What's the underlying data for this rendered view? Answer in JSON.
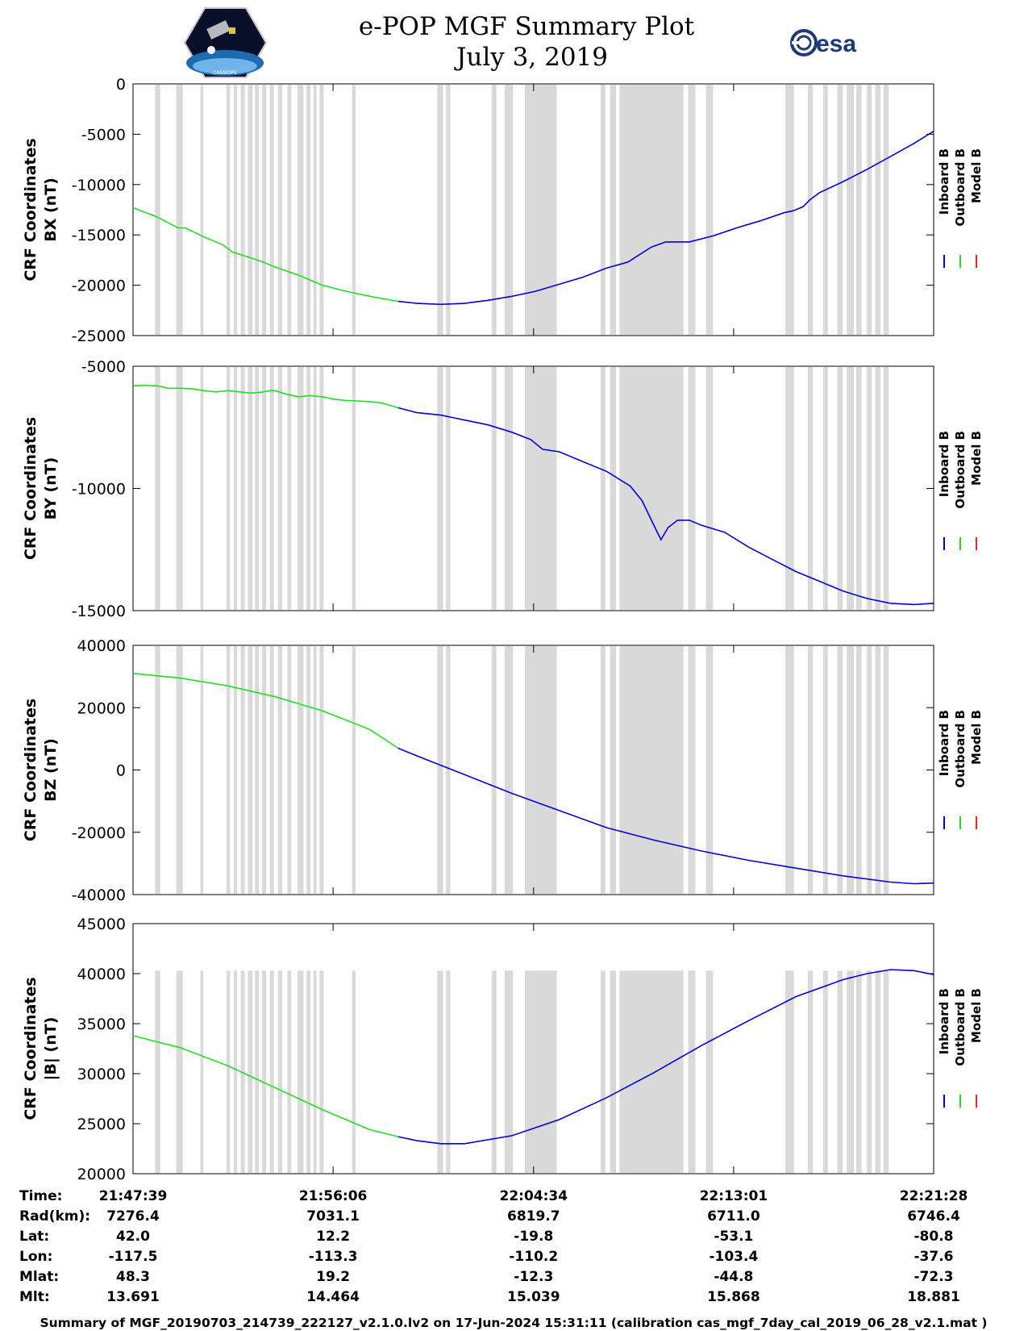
{
  "title_line1": "e-POP MGF Summary Plot",
  "title_line2": "July 3, 2019",
  "esa_logo_text": "esa",
  "cassiope_logo_text": "CASSIOPE",
  "footer": "Summary of MGF_20190703_214739_222127_v2.1.0.lv2 on 17-Jun-2024 15:31:11 (calibration cas_mgf_7day_cal_2019_06_28_v2.1.mat )",
  "colors": {
    "inboard": "#0000dd",
    "outboard": "#22dd22",
    "model": "#ee2222",
    "gap": "#d9d9d9"
  },
  "legend": {
    "inboard": "Inboard B",
    "outboard": "Outboard B",
    "model": "Model B"
  },
  "info_table": {
    "row_labels": [
      "Time:",
      "Rad(km):",
      "Lat:",
      "Lon:",
      "Mlat:",
      "Mlt:"
    ],
    "columns": [
      [
        "21:47:39",
        "7276.4",
        "42.0",
        "-117.5",
        "48.3",
        "13.691"
      ],
      [
        "21:56:06",
        "7031.1",
        "12.2",
        "-113.3",
        "19.2",
        "14.464"
      ],
      [
        "22:04:34",
        "6819.7",
        "-19.8",
        "-110.2",
        "-12.3",
        "15.039"
      ],
      [
        "22:13:01",
        "6711.0",
        "-53.1",
        "-103.4",
        "-44.8",
        "15.868"
      ],
      [
        "22:21:28",
        "6746.4",
        "-80.8",
        "-37.6",
        "-72.3",
        "18.881"
      ]
    ]
  },
  "chart_data": {
    "type": "line",
    "x_unit": "minutes since 21:47:39",
    "xlim": [
      0,
      33.82
    ],
    "xtick_values": [
      0,
      8.45,
      16.92,
      25.37,
      33.82
    ],
    "x_switch_outboard_to_inboard": 11.2,
    "data_gaps": [
      [
        0.93,
        1.15
      ],
      [
        1.83,
        2.1
      ],
      [
        2.85,
        2.97
      ],
      [
        3.95,
        4.1
      ],
      [
        4.25,
        4.4
      ],
      [
        4.55,
        4.72
      ],
      [
        4.85,
        5.05
      ],
      [
        5.15,
        5.32
      ],
      [
        5.45,
        5.62
      ],
      [
        5.78,
        5.95
      ],
      [
        6.12,
        6.3
      ],
      [
        6.52,
        6.68
      ],
      [
        6.95,
        7.2
      ],
      [
        7.33,
        7.5
      ],
      [
        7.62,
        7.75
      ],
      [
        7.88,
        8.05
      ],
      [
        9.25,
        9.4
      ],
      [
        12.85,
        13.1
      ],
      [
        13.22,
        13.4
      ],
      [
        15.15,
        15.35
      ],
      [
        15.7,
        16.05
      ],
      [
        16.55,
        17.9
      ],
      [
        19.75,
        19.95
      ],
      [
        20.15,
        20.4
      ],
      [
        20.55,
        23.25
      ],
      [
        23.45,
        23.75
      ],
      [
        24.2,
        24.5
      ],
      [
        27.55,
        27.92
      ],
      [
        28.5,
        28.72
      ],
      [
        29.15,
        29.35
      ],
      [
        29.75,
        29.97
      ],
      [
        30.15,
        30.45
      ],
      [
        30.55,
        30.78
      ],
      [
        31.0,
        31.2
      ],
      [
        31.35,
        31.58
      ],
      [
        31.7,
        31.92
      ]
    ],
    "panels": [
      {
        "ylabel_line1": "CRF Coordinates",
        "ylabel_line2": "BX (nT)",
        "ylim": [
          -25000,
          0
        ],
        "yticks": [
          0,
          -5000,
          -10000,
          -15000,
          -20000,
          -25000
        ],
        "ytick_labels": [
          "0",
          "-5000",
          "-10000",
          "-15000",
          "-20000",
          "-25000"
        ],
        "points": [
          [
            0,
            -12300
          ],
          [
            1,
            -13200
          ],
          [
            1.9,
            -14300
          ],
          [
            2.2,
            -14300
          ],
          [
            3,
            -15200
          ],
          [
            3.8,
            -16000
          ],
          [
            4.2,
            -16700
          ],
          [
            5,
            -17300
          ],
          [
            5.5,
            -17700
          ],
          [
            6,
            -18200
          ],
          [
            6.5,
            -18600
          ],
          [
            7,
            -19000
          ],
          [
            7.5,
            -19500
          ],
          [
            8,
            -20000
          ],
          [
            9,
            -20600
          ],
          [
            10,
            -21100
          ],
          [
            11.2,
            -21600
          ],
          [
            12,
            -21800
          ],
          [
            13,
            -21900
          ],
          [
            14,
            -21800
          ],
          [
            15,
            -21500
          ],
          [
            16,
            -21100
          ],
          [
            17,
            -20600
          ],
          [
            18,
            -19900
          ],
          [
            19,
            -19200
          ],
          [
            20,
            -18300
          ],
          [
            20.9,
            -17700
          ],
          [
            21.5,
            -16800
          ],
          [
            21.9,
            -16200
          ],
          [
            22.5,
            -15700
          ],
          [
            23.5,
            -15700
          ],
          [
            24.5,
            -15100
          ],
          [
            25.5,
            -14300
          ],
          [
            26.5,
            -13600
          ],
          [
            27.5,
            -12800
          ],
          [
            27.9,
            -12600
          ],
          [
            28.3,
            -12200
          ],
          [
            28.6,
            -11500
          ],
          [
            29,
            -10800
          ],
          [
            30,
            -9700
          ],
          [
            31,
            -8500
          ],
          [
            32,
            -7200
          ],
          [
            33,
            -5900
          ],
          [
            33.82,
            -4700
          ]
        ]
      },
      {
        "ylabel_line1": "CRF Coordinates",
        "ylabel_line2": "BY (nT)",
        "ylim": [
          -15000,
          -5000
        ],
        "yticks": [
          -5000,
          -10000,
          -15000
        ],
        "ytick_labels": [
          "-5000",
          "-10000",
          "-15000"
        ],
        "points": [
          [
            0,
            -5800
          ],
          [
            0.5,
            -5780
          ],
          [
            1,
            -5800
          ],
          [
            1.5,
            -5900
          ],
          [
            2,
            -5900
          ],
          [
            2.5,
            -5920
          ],
          [
            3,
            -6000
          ],
          [
            3.5,
            -6050
          ],
          [
            4,
            -6000
          ],
          [
            4.5,
            -6050
          ],
          [
            5,
            -6100
          ],
          [
            5.5,
            -6050
          ],
          [
            5.8,
            -6000
          ],
          [
            6,
            -6000
          ],
          [
            6.5,
            -6150
          ],
          [
            7,
            -6250
          ],
          [
            7.5,
            -6200
          ],
          [
            8,
            -6250
          ],
          [
            8.5,
            -6350
          ],
          [
            9,
            -6400
          ],
          [
            9.5,
            -6420
          ],
          [
            10,
            -6450
          ],
          [
            10.5,
            -6500
          ],
          [
            11.2,
            -6700
          ],
          [
            12,
            -6900
          ],
          [
            13,
            -7000
          ],
          [
            13.5,
            -7100
          ],
          [
            14,
            -7200
          ],
          [
            15,
            -7400
          ],
          [
            16,
            -7700
          ],
          [
            16.8,
            -8000
          ],
          [
            17.3,
            -8400
          ],
          [
            18,
            -8500
          ],
          [
            19,
            -8900
          ],
          [
            20,
            -9300
          ],
          [
            20.5,
            -9600
          ],
          [
            21,
            -9900
          ],
          [
            21.5,
            -10500
          ],
          [
            22,
            -11500
          ],
          [
            22.3,
            -12100
          ],
          [
            22.6,
            -11600
          ],
          [
            23,
            -11300
          ],
          [
            23.5,
            -11300
          ],
          [
            24,
            -11500
          ],
          [
            25,
            -11800
          ],
          [
            26,
            -12400
          ],
          [
            27,
            -12900
          ],
          [
            28,
            -13400
          ],
          [
            29,
            -13800
          ],
          [
            30,
            -14200
          ],
          [
            31,
            -14500
          ],
          [
            32,
            -14700
          ],
          [
            33,
            -14750
          ],
          [
            33.82,
            -14700
          ]
        ]
      },
      {
        "ylabel_line1": "CRF Coordinates",
        "ylabel_line2": "BZ (nT)",
        "ylim": [
          -40000,
          40000
        ],
        "yticks": [
          40000,
          20000,
          0,
          -20000,
          -40000
        ],
        "ytick_labels": [
          "40000",
          "20000",
          "0",
          "-20000",
          "-40000"
        ],
        "points": [
          [
            0,
            31000
          ],
          [
            2,
            29500
          ],
          [
            4,
            27000
          ],
          [
            6,
            23500
          ],
          [
            8,
            19000
          ],
          [
            10,
            13000
          ],
          [
            11.2,
            7000
          ],
          [
            12,
            4500
          ],
          [
            14,
            -1500
          ],
          [
            16,
            -7500
          ],
          [
            18,
            -13000
          ],
          [
            20,
            -18500
          ],
          [
            22,
            -22500
          ],
          [
            24,
            -26000
          ],
          [
            26,
            -29000
          ],
          [
            28,
            -31500
          ],
          [
            30,
            -34000
          ],
          [
            32,
            -36000
          ],
          [
            33,
            -36500
          ],
          [
            33.82,
            -36300
          ]
        ]
      },
      {
        "ylabel_line1": "CRF Coordinates",
        "ylabel_line2": "|B| (nT)",
        "ylim": [
          20000,
          45000
        ],
        "yticks": [
          45000,
          40000,
          35000,
          30000,
          25000,
          20000
        ],
        "ytick_labels": [
          "45000",
          "40000",
          "35000",
          "30000",
          "25000",
          "20000"
        ],
        "points": [
          [
            0,
            33800
          ],
          [
            2,
            32600
          ],
          [
            4,
            30800
          ],
          [
            6,
            28600
          ],
          [
            8,
            26400
          ],
          [
            10,
            24400
          ],
          [
            11.2,
            23700
          ],
          [
            12,
            23300
          ],
          [
            13,
            23000
          ],
          [
            14,
            23000
          ],
          [
            16,
            23800
          ],
          [
            18,
            25400
          ],
          [
            20,
            27600
          ],
          [
            22,
            30100
          ],
          [
            24,
            32800
          ],
          [
            26,
            35300
          ],
          [
            28,
            37700
          ],
          [
            30,
            39400
          ],
          [
            31,
            40000
          ],
          [
            32,
            40400
          ],
          [
            33,
            40300
          ],
          [
            33.82,
            39900
          ]
        ]
      }
    ]
  }
}
